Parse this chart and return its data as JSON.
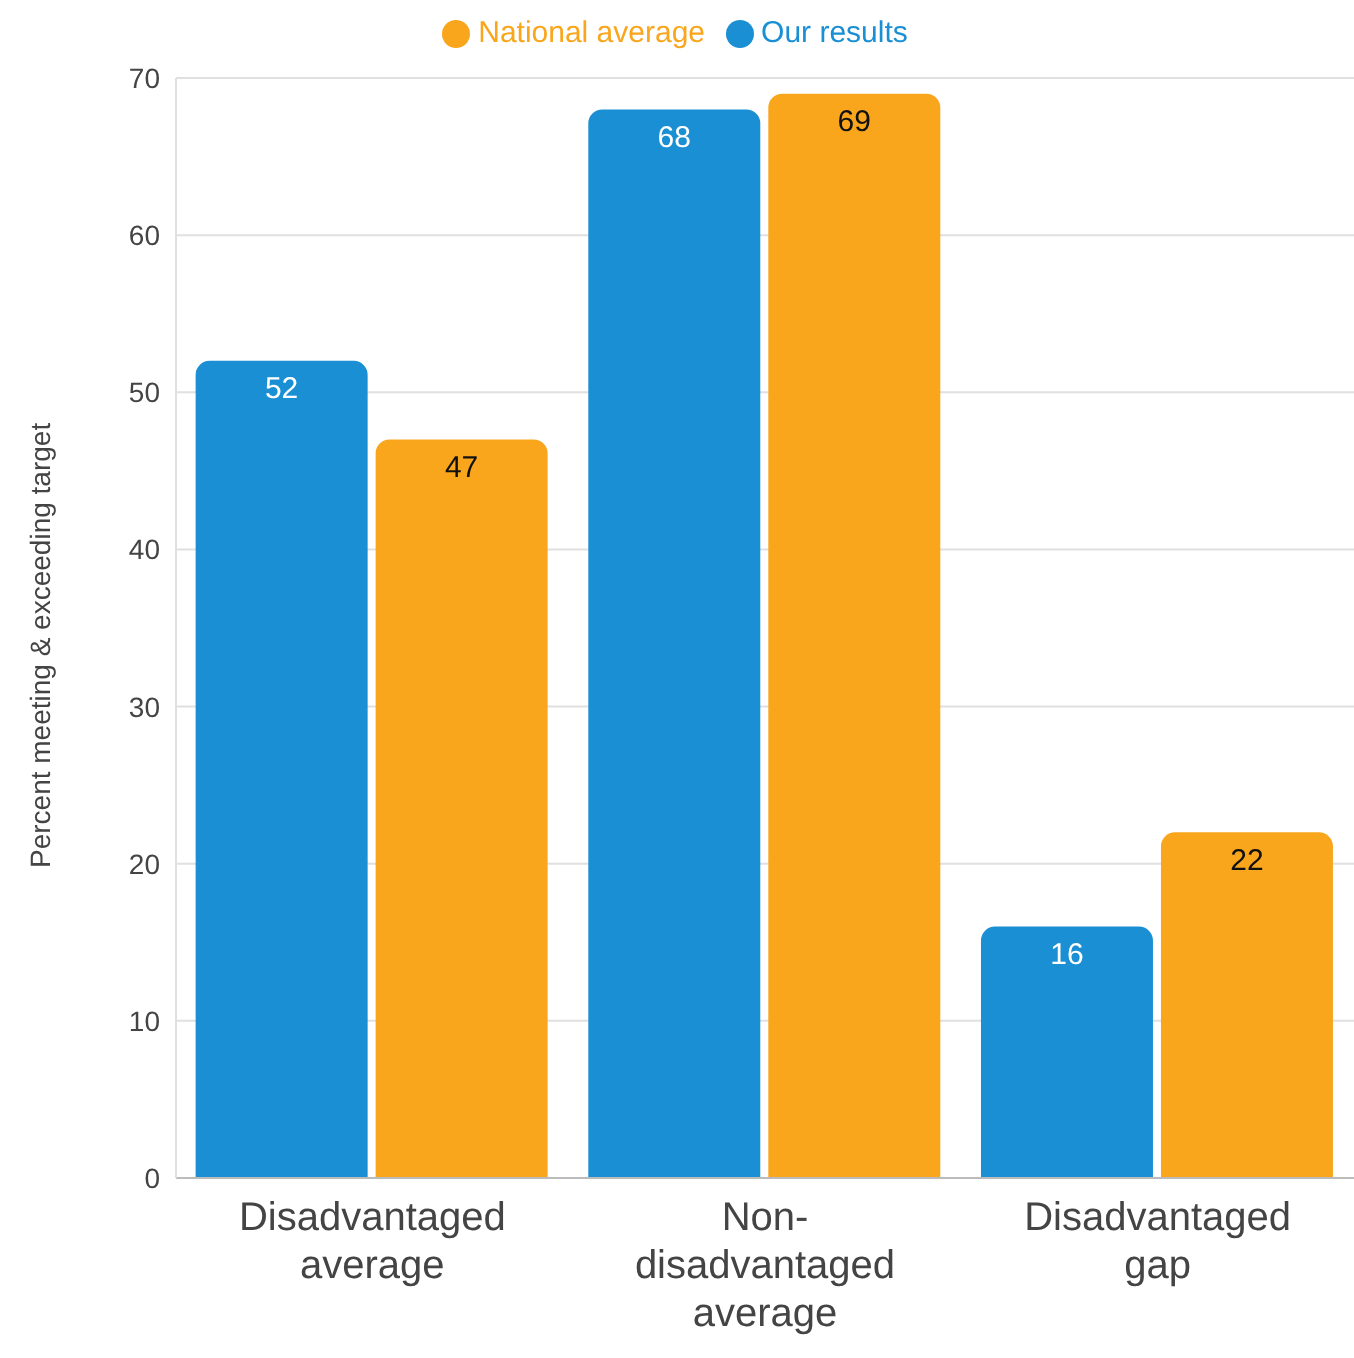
{
  "chart_data": {
    "type": "bar",
    "ylabel": "Percent meeting & exceeding target",
    "categories": [
      "Disadvantaged average",
      "Non-disadvantaged average",
      "Disadvantaged gap"
    ],
    "series": [
      {
        "name": "Our results",
        "color": "#1a8fd3",
        "values": [
          52,
          68,
          16
        ]
      },
      {
        "name": "National average",
        "color": "#f9a61d",
        "values": [
          47,
          69,
          22
        ]
      }
    ],
    "ylim": [
      0,
      70
    ],
    "yticks": [
      0,
      10,
      20,
      30,
      40,
      50,
      60,
      70
    ],
    "grid": "y",
    "legend": "top",
    "data_labels": true
  }
}
